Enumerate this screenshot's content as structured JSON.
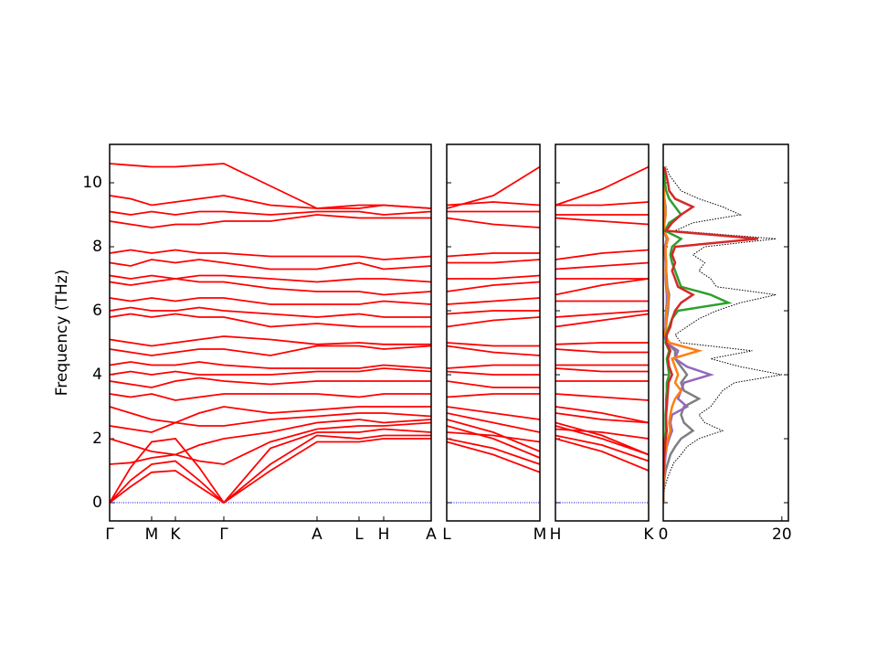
{
  "chart_data": [
    {
      "type": "line",
      "color": "#ff0000",
      "hline": 0,
      "hline_color": "#0000cd",
      "ylabel": "Frequency (THz)",
      "ylim": [
        -0.57,
        11.2
      ],
      "yticks": [
        0,
        2,
        4,
        6,
        8,
        10
      ],
      "xlim": [
        0,
        3.52
      ],
      "xticks": [
        {
          "value": 0,
          "label": "Γ"
        },
        {
          "value": 0.46,
          "label": "M"
        },
        {
          "value": 0.72,
          "label": "K"
        },
        {
          "value": 1.25,
          "label": "Γ"
        },
        {
          "value": 2.27,
          "label": "A"
        },
        {
          "value": 2.73,
          "label": "L"
        },
        {
          "value": 3.0,
          "label": "H"
        },
        {
          "value": 3.52,
          "label": "A"
        }
      ],
      "x": [
        0,
        0.23,
        0.46,
        0.72,
        0.98,
        1.25,
        1.76,
        2.27,
        2.73,
        3.0,
        3.52
      ],
      "series": [
        {
          "values": [
            0,
            0.5,
            0.95,
            1.0,
            0.5,
            0,
            1.0,
            1.9,
            1.9,
            2.0,
            2.0
          ]
        },
        {
          "values": [
            0,
            0.7,
            1.2,
            1.3,
            0.7,
            0,
            1.2,
            2.1,
            2.0,
            2.1,
            2.1
          ]
        },
        {
          "values": [
            0,
            1.1,
            1.9,
            2.0,
            1.1,
            0,
            1.7,
            2.2,
            2.2,
            2.3,
            2.2
          ]
        },
        {
          "values": [
            1.2,
            1.25,
            1.4,
            1.5,
            1.3,
            1.2,
            1.9,
            2.3,
            2.4,
            2.4,
            2.5
          ]
        },
        {
          "values": [
            2.0,
            1.8,
            1.6,
            1.5,
            1.8,
            2.0,
            2.2,
            2.5,
            2.6,
            2.5,
            2.6
          ]
        },
        {
          "values": [
            2.4,
            2.3,
            2.2,
            2.5,
            2.4,
            2.4,
            2.6,
            2.7,
            2.8,
            2.8,
            2.7
          ]
        },
        {
          "values": [
            3.0,
            2.8,
            2.6,
            2.5,
            2.8,
            3.0,
            2.8,
            2.9,
            3.0,
            3.0,
            3.0
          ]
        },
        {
          "values": [
            3.4,
            3.3,
            3.4,
            3.2,
            3.3,
            3.4,
            3.4,
            3.4,
            3.3,
            3.4,
            3.4
          ]
        },
        {
          "values": [
            3.8,
            3.7,
            3.6,
            3.8,
            3.9,
            3.8,
            3.7,
            3.8,
            3.8,
            3.8,
            3.8
          ]
        },
        {
          "values": [
            4.0,
            4.1,
            4.0,
            4.1,
            4.0,
            4.0,
            4.0,
            4.1,
            4.1,
            4.2,
            4.1
          ]
        },
        {
          "values": [
            4.3,
            4.4,
            4.3,
            4.3,
            4.4,
            4.3,
            4.2,
            4.2,
            4.2,
            4.3,
            4.2
          ]
        },
        {
          "values": [
            4.8,
            4.7,
            4.6,
            4.7,
            4.8,
            4.8,
            4.6,
            4.9,
            4.9,
            4.8,
            4.9
          ]
        },
        {
          "values": [
            5.1,
            5.0,
            4.9,
            5.0,
            5.1,
            5.2,
            5.1,
            4.95,
            5.0,
            4.95,
            4.95
          ]
        },
        {
          "values": [
            5.8,
            5.9,
            5.8,
            5.9,
            5.8,
            5.8,
            5.5,
            5.6,
            5.5,
            5.5,
            5.5
          ]
        },
        {
          "values": [
            6.0,
            6.1,
            6.0,
            6.0,
            6.1,
            6.0,
            5.9,
            5.8,
            5.9,
            5.8,
            5.8
          ]
        },
        {
          "values": [
            6.4,
            6.3,
            6.4,
            6.3,
            6.4,
            6.4,
            6.2,
            6.2,
            6.2,
            6.3,
            6.2
          ]
        },
        {
          "values": [
            6.9,
            6.8,
            6.9,
            7.0,
            6.9,
            6.9,
            6.7,
            6.6,
            6.6,
            6.5,
            6.6
          ]
        },
        {
          "values": [
            7.1,
            7.0,
            7.1,
            7.0,
            7.1,
            7.1,
            7.0,
            6.9,
            7.0,
            7.0,
            6.9
          ]
        },
        {
          "values": [
            7.5,
            7.4,
            7.6,
            7.5,
            7.6,
            7.5,
            7.3,
            7.3,
            7.5,
            7.3,
            7.4
          ]
        },
        {
          "values": [
            7.8,
            7.9,
            7.8,
            7.9,
            7.8,
            7.8,
            7.7,
            7.7,
            7.7,
            7.6,
            7.7
          ]
        },
        {
          "values": [
            8.8,
            8.7,
            8.6,
            8.7,
            8.7,
            8.8,
            8.8,
            9.0,
            8.9,
            8.9,
            8.9
          ]
        },
        {
          "values": [
            9.1,
            9.0,
            9.1,
            9.0,
            9.1,
            9.1,
            9.0,
            9.1,
            9.1,
            9.0,
            9.1
          ]
        },
        {
          "values": [
            9.6,
            9.5,
            9.3,
            9.4,
            9.5,
            9.6,
            9.3,
            9.2,
            9.3,
            9.3,
            9.2
          ]
        },
        {
          "values": [
            10.6,
            10.55,
            10.5,
            10.5,
            10.55,
            10.6,
            9.9,
            9.2,
            9.2,
            9.3,
            9.2
          ]
        }
      ]
    },
    {
      "type": "line",
      "color": "#ff0000",
      "hline": 0,
      "hline_color": "#0000cd",
      "xlim": [
        0,
        1.02
      ],
      "xticks": [
        {
          "value": 0,
          "label": "L"
        },
        {
          "value": 1.02,
          "label": "M"
        }
      ],
      "x": [
        0,
        0.51,
        1.02
      ],
      "series": [
        {
          "values": [
            1.9,
            1.5,
            0.95
          ]
        },
        {
          "values": [
            2.0,
            1.7,
            1.2
          ]
        },
        {
          "values": [
            2.2,
            2.1,
            1.9
          ]
        },
        {
          "values": [
            2.4,
            2.0,
            1.4
          ]
        },
        {
          "values": [
            2.6,
            2.2,
            1.6
          ]
        },
        {
          "values": [
            2.8,
            2.5,
            2.2
          ]
        },
        {
          "values": [
            3.0,
            2.8,
            2.6
          ]
        },
        {
          "values": [
            3.3,
            3.4,
            3.4
          ]
        },
        {
          "values": [
            3.8,
            3.6,
            3.6
          ]
        },
        {
          "values": [
            4.1,
            4.0,
            4.0
          ]
        },
        {
          "values": [
            4.2,
            4.3,
            4.3
          ]
        },
        {
          "values": [
            4.9,
            4.7,
            4.6
          ]
        },
        {
          "values": [
            5.0,
            4.9,
            4.9
          ]
        },
        {
          "values": [
            5.5,
            5.7,
            5.8
          ]
        },
        {
          "values": [
            5.9,
            6.0,
            6.0
          ]
        },
        {
          "values": [
            6.2,
            6.3,
            6.4
          ]
        },
        {
          "values": [
            6.6,
            6.8,
            6.9
          ]
        },
        {
          "values": [
            7.0,
            7.0,
            7.1
          ]
        },
        {
          "values": [
            7.5,
            7.5,
            7.6
          ]
        },
        {
          "values": [
            7.7,
            7.8,
            7.8
          ]
        },
        {
          "values": [
            8.9,
            8.7,
            8.6
          ]
        },
        {
          "values": [
            9.1,
            9.1,
            9.1
          ]
        },
        {
          "values": [
            9.3,
            9.4,
            9.3
          ]
        },
        {
          "values": [
            9.2,
            9.6,
            10.5
          ]
        }
      ]
    },
    {
      "type": "line",
      "color": "#ff0000",
      "hline": 0,
      "hline_color": "#0000cd",
      "xlim": [
        0,
        1.02
      ],
      "xticks": [
        {
          "value": 0,
          "label": "H"
        },
        {
          "value": 1.02,
          "label": "K"
        }
      ],
      "x": [
        0,
        0.51,
        1.02
      ],
      "series": [
        {
          "values": [
            2.0,
            1.6,
            1.0
          ]
        },
        {
          "values": [
            2.1,
            1.8,
            1.3
          ]
        },
        {
          "values": [
            2.3,
            2.2,
            2.0
          ]
        },
        {
          "values": [
            2.4,
            2.0,
            1.5
          ]
        },
        {
          "values": [
            2.5,
            2.1,
            1.5
          ]
        },
        {
          "values": [
            2.8,
            2.6,
            2.5
          ]
        },
        {
          "values": [
            3.0,
            2.8,
            2.5
          ]
        },
        {
          "values": [
            3.4,
            3.3,
            3.2
          ]
        },
        {
          "values": [
            3.8,
            3.8,
            3.8
          ]
        },
        {
          "values": [
            4.2,
            4.1,
            4.1
          ]
        },
        {
          "values": [
            4.3,
            4.3,
            4.3
          ]
        },
        {
          "values": [
            4.8,
            4.7,
            4.7
          ]
        },
        {
          "values": [
            4.95,
            5.0,
            5.0
          ]
        },
        {
          "values": [
            5.5,
            5.7,
            5.9
          ]
        },
        {
          "values": [
            5.8,
            5.9,
            6.0
          ]
        },
        {
          "values": [
            6.3,
            6.3,
            6.3
          ]
        },
        {
          "values": [
            6.5,
            6.8,
            7.0
          ]
        },
        {
          "values": [
            7.0,
            7.0,
            7.0
          ]
        },
        {
          "values": [
            7.3,
            7.4,
            7.5
          ]
        },
        {
          "values": [
            7.6,
            7.8,
            7.9
          ]
        },
        {
          "values": [
            8.9,
            8.8,
            8.7
          ]
        },
        {
          "values": [
            9.0,
            9.0,
            9.0
          ]
        },
        {
          "values": [
            9.3,
            9.3,
            9.4
          ]
        },
        {
          "values": [
            9.3,
            9.8,
            10.5
          ]
        }
      ]
    },
    {
      "type": "line",
      "orientation": "horizontal",
      "xlim": [
        0,
        21.1
      ],
      "xticks": [
        0,
        20
      ],
      "y": [
        0,
        0.25,
        0.5,
        0.75,
        1,
        1.25,
        1.5,
        1.75,
        2,
        2.25,
        2.5,
        2.75,
        3,
        3.25,
        3.5,
        3.75,
        4,
        4.25,
        4.5,
        4.75,
        5,
        5.25,
        5.5,
        5.75,
        6,
        6.25,
        6.5,
        6.75,
        7,
        7.25,
        7.5,
        7.75,
        8,
        8.25,
        8.5,
        8.75,
        9,
        9.25,
        9.5,
        9.75,
        10,
        10.25,
        10.5
      ],
      "series": [
        {
          "color": "#000000",
          "style": "dotted",
          "values": [
            0,
            0.1,
            0.3,
            0.7,
            1.2,
            1.8,
            3,
            4,
            6,
            10,
            7,
            6,
            8,
            9,
            10,
            12,
            20,
            13,
            8,
            15,
            3,
            2,
            4,
            6,
            9,
            13,
            19,
            9,
            8,
            6,
            7,
            5,
            7,
            19,
            2,
            5,
            13,
            10,
            6,
            3,
            2,
            1,
            0.5
          ]
        },
        {
          "color": "#7f7f7f",
          "style": "solid",
          "values": [
            0,
            0,
            0.1,
            0.2,
            0.4,
            0.8,
            1.2,
            2.0,
            3.0,
            5.0,
            3.5,
            3.0,
            3.5,
            6.0,
            3.5,
            3.0,
            4.0,
            3.0,
            2.0,
            2.0,
            0.5,
            0.3,
            0.5,
            0.6,
            0.8,
            0.9,
            1.0,
            0.7,
            0.6,
            0.5,
            0.5,
            0.4,
            0.4,
            0.8,
            0.1,
            0.2,
            0.4,
            0.4,
            0.2,
            0.1,
            0,
            0,
            0
          ]
        },
        {
          "color": "#9467bd",
          "style": "solid",
          "values": [
            0,
            0,
            0,
            0.1,
            0.2,
            0.3,
            0.4,
            0.6,
            1.0,
            1.5,
            1.2,
            1.5,
            4.0,
            2.5,
            3.0,
            3.5,
            8.0,
            4.0,
            2.0,
            2.5,
            0.5,
            0.2,
            0.4,
            0.4,
            0.5,
            0.6,
            0.6,
            0.5,
            0.4,
            0.4,
            0.4,
            0.3,
            0.3,
            0.6,
            0.1,
            0.2,
            0.3,
            0.3,
            0.2,
            0.1,
            0,
            0,
            0
          ]
        },
        {
          "color": "#ff7f0e",
          "style": "solid",
          "values": [
            0,
            0,
            0,
            0.1,
            0.2,
            0.2,
            0.3,
            0.5,
            0.8,
            1.2,
            1.0,
            1.2,
            1.5,
            2.0,
            3.0,
            2.0,
            2.5,
            2.0,
            1.5,
            6.0,
            1.0,
            0.3,
            0.5,
            0.5,
            0.6,
            0.8,
            0.8,
            0.6,
            0.5,
            0.4,
            0.5,
            0.4,
            0.4,
            0.8,
            0.1,
            0.2,
            0.4,
            0.3,
            0.2,
            0.1,
            0.1,
            0,
            0
          ]
        },
        {
          "color": "#2ca02c",
          "style": "solid",
          "values": [
            0,
            0,
            0,
            0,
            0,
            0.1,
            0.1,
            0.2,
            0.3,
            0.4,
            0.4,
            0.4,
            0.5,
            0.5,
            0.6,
            0.6,
            1.0,
            0.8,
            0.6,
            1.0,
            0.4,
            0.5,
            1.0,
            1.5,
            2.5,
            11,
            8,
            3,
            2.5,
            2,
            1.5,
            1.2,
            1.5,
            3,
            0.3,
            1,
            3,
            2,
            1,
            0.5,
            0.3,
            0.2,
            0.1
          ]
        },
        {
          "color": "#d62728",
          "style": "solid",
          "values": [
            0,
            0,
            0,
            0,
            0.1,
            0.1,
            0.2,
            0.3,
            0.4,
            0.6,
            0.5,
            0.5,
            0.6,
            0.7,
            0.8,
            0.9,
            1.5,
            1.0,
            0.8,
            1.2,
            0.5,
            0.6,
            1.2,
            1.5,
            2.0,
            3.0,
            5.0,
            2.5,
            2.0,
            1.5,
            2.0,
            1.5,
            2.0,
            16,
            0.5,
            1.5,
            3.0,
            5.0,
            2.0,
            1.0,
            0.8,
            0.5,
            0.2
          ]
        }
      ]
    }
  ]
}
